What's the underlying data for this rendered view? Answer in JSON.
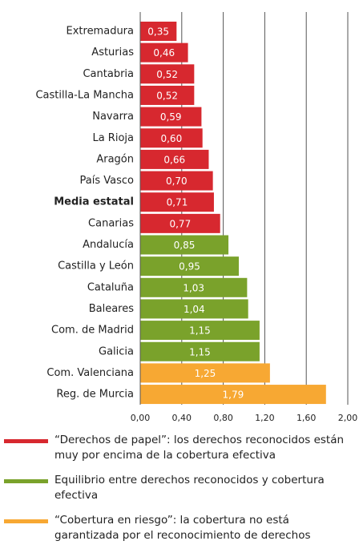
{
  "chart_data": {
    "type": "hbar",
    "categories": [
      "Extremadura",
      "Asturias",
      "Cantabria",
      "Castilla-La Mancha",
      "Navarra",
      "La Rioja",
      "Aragón",
      "País Vasco",
      "Media estatal",
      "Canarias",
      "Andalucía",
      "Castilla y León",
      "Cataluña",
      "Baleares",
      "Com. de Madrid",
      "Galicia",
      "Com. Valenciana",
      "Reg. de Murcia"
    ],
    "bold_categories": [
      8
    ],
    "series": [
      {
        "name": "“Derechos de papel”: los derechos reconocidos están muy por encima de la cobertura efectiva",
        "color": "#d7282f",
        "values": [
          0.35,
          0.46,
          0.52,
          0.52,
          0.59,
          0.6,
          0.66,
          0.7,
          0.71,
          0.77,
          null,
          null,
          null,
          null,
          null,
          null,
          null,
          null
        ],
        "value_labels": [
          "0,35",
          "0,46",
          "0,52",
          "0,52",
          "0,59",
          "0,60",
          "0,66",
          "0,70",
          "0,71",
          "0,77",
          null,
          null,
          null,
          null,
          null,
          null,
          null,
          null
        ]
      },
      {
        "name": "Equilibrio entre derechos reconocidos y cobertura efectiva",
        "color": "#7aa22b",
        "values": [
          null,
          null,
          null,
          null,
          null,
          null,
          null,
          null,
          null,
          null,
          0.85,
          0.95,
          1.03,
          1.04,
          1.15,
          1.15,
          null,
          null
        ],
        "value_labels": [
          null,
          null,
          null,
          null,
          null,
          null,
          null,
          null,
          null,
          null,
          "0,85",
          "0,95",
          "1,03",
          "1,04",
          "1,15",
          "1,15",
          null,
          null
        ]
      },
      {
        "name": "“Cobertura en riesgo”: la cobertura no está garantizada por el reconocimiento de derechos",
        "color": "#f7a833",
        "values": [
          null,
          null,
          null,
          null,
          null,
          null,
          null,
          null,
          null,
          null,
          null,
          null,
          null,
          null,
          null,
          null,
          1.25,
          1.79
        ],
        "value_labels": [
          null,
          null,
          null,
          null,
          null,
          null,
          null,
          null,
          null,
          null,
          null,
          null,
          null,
          null,
          null,
          null,
          "1,25",
          "1,79"
        ]
      }
    ],
    "xlim": [
      0,
      2
    ],
    "xticks": [
      {
        "value": 0,
        "label": "0,00"
      },
      {
        "value": 0.4,
        "label": "0,40"
      },
      {
        "value": 0.8,
        "label": "0,80"
      },
      {
        "value": 1.2,
        "label": "1,20"
      },
      {
        "value": 1.6,
        "label": "1,60"
      },
      {
        "value": 2,
        "label": "2,00"
      }
    ],
    "grid": true
  }
}
